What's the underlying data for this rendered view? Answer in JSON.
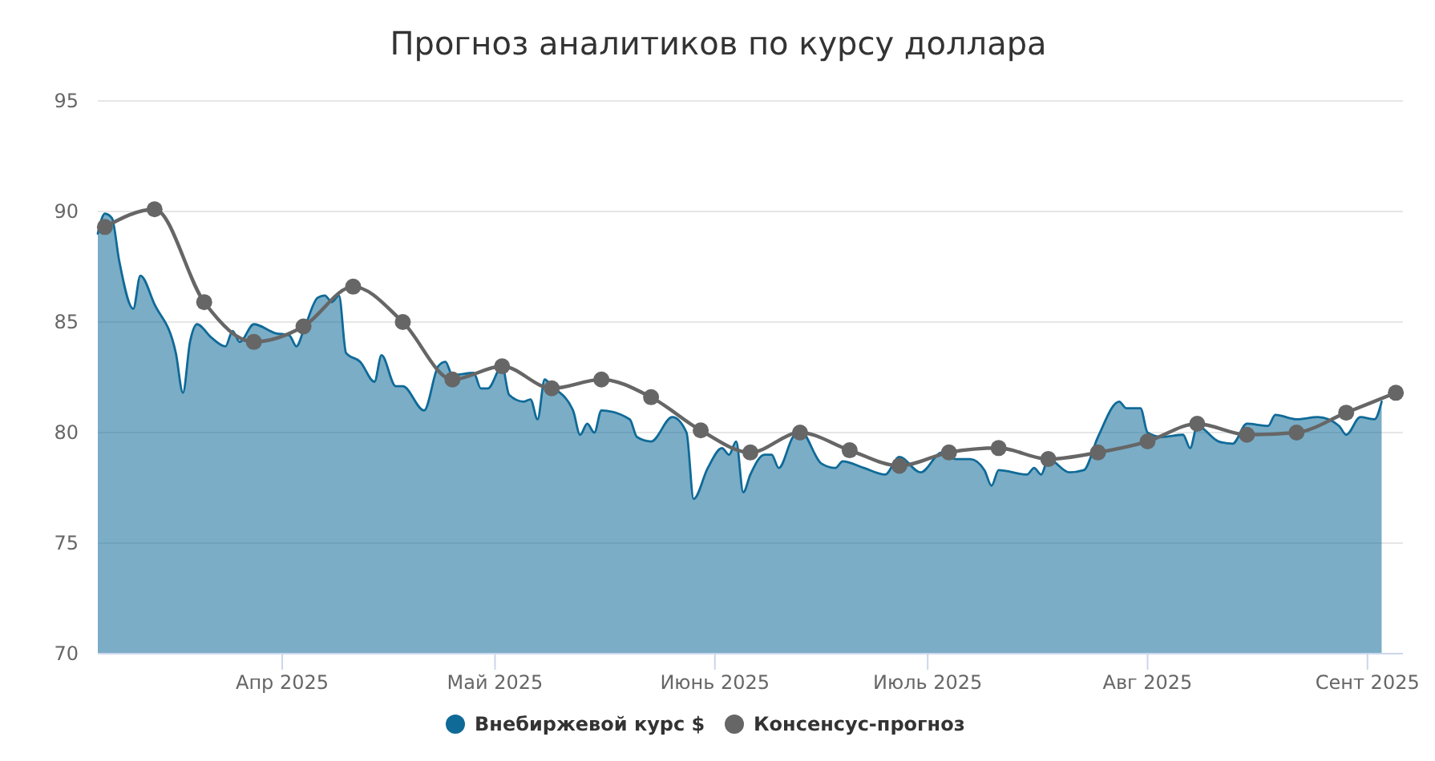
{
  "chart_data": {
    "type": "area",
    "title": "Прогноз аналитиков по курсу доллара",
    "xlim": [
      "2025-03-06",
      "2025-09-06"
    ],
    "xticks": [
      {
        "value": "2025-04-01",
        "label": "Апр 2025"
      },
      {
        "value": "2025-05-01",
        "label": "Май 2025"
      },
      {
        "value": "2025-06-01",
        "label": "Июнь 2025"
      },
      {
        "value": "2025-07-01",
        "label": "Июль 2025"
      },
      {
        "value": "2025-08-01",
        "label": "Авг 2025"
      },
      {
        "value": "2025-09-01",
        "label": "Сент 2025"
      }
    ],
    "ylim": [
      70,
      95
    ],
    "yticks": [
      70,
      75,
      80,
      85,
      90,
      95
    ],
    "grid": "y",
    "legend": "bottom",
    "series": [
      {
        "name": "Внебиржевой курс $",
        "color": "#0f6a98",
        "marker": "none",
        "x": [
          "2025-03-06",
          "2025-03-07",
          "2025-03-08",
          "2025-03-09",
          "2025-03-11",
          "2025-03-12",
          "2025-03-14",
          "2025-03-17",
          "2025-03-18",
          "2025-03-19",
          "2025-03-20",
          "2025-03-22",
          "2025-03-24",
          "2025-03-25",
          "2025-03-26",
          "2025-03-28",
          "2025-03-31",
          "2025-04-02",
          "2025-04-03",
          "2025-04-04",
          "2025-04-06",
          "2025-04-07",
          "2025-04-08",
          "2025-04-09",
          "2025-04-10",
          "2025-04-12",
          "2025-04-14",
          "2025-04-15",
          "2025-04-17",
          "2025-04-18",
          "2025-04-21",
          "2025-04-23",
          "2025-04-24",
          "2025-04-25",
          "2025-04-28",
          "2025-04-29",
          "2025-04-30",
          "2025-05-02",
          "2025-05-03",
          "2025-05-05",
          "2025-05-06",
          "2025-05-07",
          "2025-05-08",
          "2025-05-09",
          "2025-05-12",
          "2025-05-13",
          "2025-05-14",
          "2025-05-15",
          "2025-05-16",
          "2025-05-20",
          "2025-05-21",
          "2025-05-23",
          "2025-05-26",
          "2025-05-28",
          "2025-05-29",
          "2025-05-31",
          "2025-06-02",
          "2025-06-03",
          "2025-06-04",
          "2025-06-05",
          "2025-06-06",
          "2025-06-08",
          "2025-06-09",
          "2025-06-10",
          "2025-06-12",
          "2025-06-13",
          "2025-06-16",
          "2025-06-18",
          "2025-06-19",
          "2025-06-22",
          "2025-06-25",
          "2025-06-27",
          "2025-06-30",
          "2025-07-03",
          "2025-07-05",
          "2025-07-07",
          "2025-07-09",
          "2025-07-10",
          "2025-07-11",
          "2025-07-15",
          "2025-07-16",
          "2025-07-17",
          "2025-07-18",
          "2025-07-21",
          "2025-07-23",
          "2025-07-25",
          "2025-07-28",
          "2025-07-29",
          "2025-07-31",
          "2025-08-01",
          "2025-08-03",
          "2025-08-06",
          "2025-08-07",
          "2025-08-08",
          "2025-08-11",
          "2025-08-13",
          "2025-08-15",
          "2025-08-18",
          "2025-08-19",
          "2025-08-22",
          "2025-08-25",
          "2025-08-28",
          "2025-08-29",
          "2025-08-31",
          "2025-09-02",
          "2025-09-03"
        ],
        "values": [
          89.0,
          89.9,
          89.7,
          87.8,
          85.6,
          87.1,
          85.8,
          83.6,
          81.8,
          84.1,
          84.9,
          84.3,
          83.9,
          84.6,
          84.1,
          84.9,
          84.5,
          84.4,
          83.9,
          84.6,
          86.1,
          86.2,
          85.9,
          86.2,
          83.6,
          83.2,
          82.3,
          83.5,
          82.1,
          82.1,
          81.0,
          83.0,
          83.2,
          82.6,
          82.7,
          82.0,
          82.0,
          83.0,
          81.7,
          81.4,
          81.5,
          80.6,
          82.4,
          82.1,
          81.0,
          79.9,
          80.4,
          80.0,
          81.0,
          80.6,
          79.8,
          79.6,
          80.7,
          80.0,
          77.0,
          78.4,
          79.3,
          79.0,
          79.6,
          77.3,
          78.1,
          79.0,
          79.0,
          78.4,
          79.8,
          80.1,
          78.6,
          78.4,
          78.7,
          78.4,
          78.1,
          78.9,
          78.2,
          79.1,
          78.8,
          78.8,
          78.3,
          77.6,
          78.3,
          78.1,
          78.4,
          78.1,
          78.8,
          78.2,
          78.3,
          79.8,
          81.4,
          81.1,
          81.1,
          80.0,
          79.8,
          79.9,
          79.3,
          80.3,
          79.6,
          79.5,
          80.4,
          80.3,
          80.8,
          80.6,
          80.7,
          80.3,
          79.9,
          80.7,
          80.6,
          81.4
        ]
      },
      {
        "name": "Консенсус-прогноз",
        "type": "line",
        "color": "#666666",
        "marker": "circle",
        "x": [
          "2025-03-07",
          "2025-03-14",
          "2025-03-21",
          "2025-03-28",
          "2025-04-04",
          "2025-04-11",
          "2025-04-18",
          "2025-04-25",
          "2025-05-02",
          "2025-05-09",
          "2025-05-16",
          "2025-05-23",
          "2025-05-30",
          "2025-06-06",
          "2025-06-13",
          "2025-06-20",
          "2025-06-27",
          "2025-07-04",
          "2025-07-11",
          "2025-07-18",
          "2025-07-25",
          "2025-08-01",
          "2025-08-08",
          "2025-08-15",
          "2025-08-22",
          "2025-08-29",
          "2025-09-05"
        ],
        "values": [
          89.3,
          90.1,
          85.9,
          84.1,
          84.8,
          86.6,
          85.0,
          82.4,
          83.0,
          82.0,
          82.4,
          81.6,
          80.1,
          79.1,
          80.0,
          79.2,
          78.5,
          79.1,
          79.3,
          78.8,
          79.1,
          79.6,
          80.4,
          79.9,
          80.0,
          80.9,
          81.8
        ]
      }
    ]
  }
}
